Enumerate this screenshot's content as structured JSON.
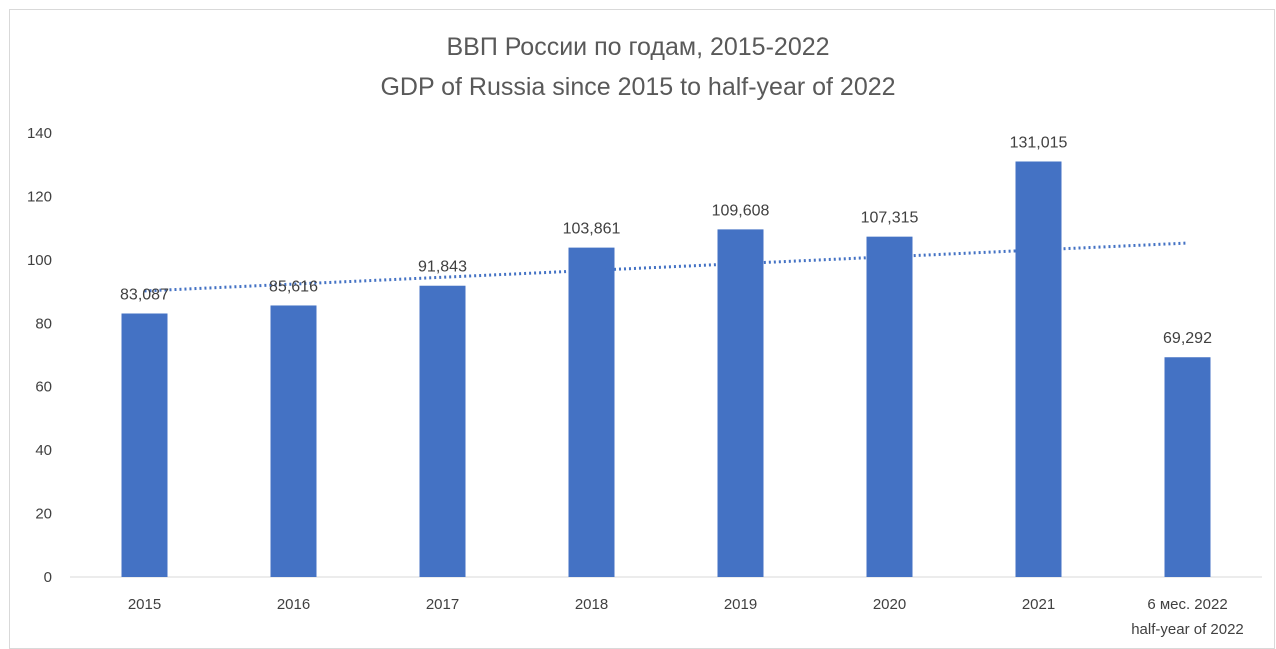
{
  "chart_data": {
    "type": "bar",
    "title": "ВВП России по годам, 2015-2022",
    "subtitle": "GDP of Russia since 2015 to half-year of 2022",
    "xlabel": "",
    "ylabel": "",
    "categories": [
      [
        "2015"
      ],
      [
        "2016"
      ],
      [
        "2017"
      ],
      [
        "2018"
      ],
      [
        "2019"
      ],
      [
        "2020"
      ],
      [
        "2021"
      ],
      [
        "6 мес. 2022",
        "half-year of 2022"
      ]
    ],
    "values": [
      83.087,
      85.616,
      91.843,
      103.861,
      109.608,
      107.315,
      131.015,
      69.292
    ],
    "data_labels": [
      "83,087",
      "85,616",
      "91,843",
      "103,861",
      "109,608",
      "107,315",
      "131,015",
      "69,292"
    ],
    "ylim": [
      0,
      140
    ],
    "yticks": [
      0,
      20,
      40,
      60,
      80,
      100,
      120,
      140
    ],
    "grid": false,
    "legend": "none",
    "trendline": {
      "type": "linear",
      "style": "dotted",
      "start_value": 90.2,
      "end_value": 105.3
    },
    "colors": {
      "bar": "#4472c4",
      "trendline": "#4472c4",
      "axis": "#d9d9d9",
      "text": "#404040",
      "title": "#595959"
    }
  }
}
